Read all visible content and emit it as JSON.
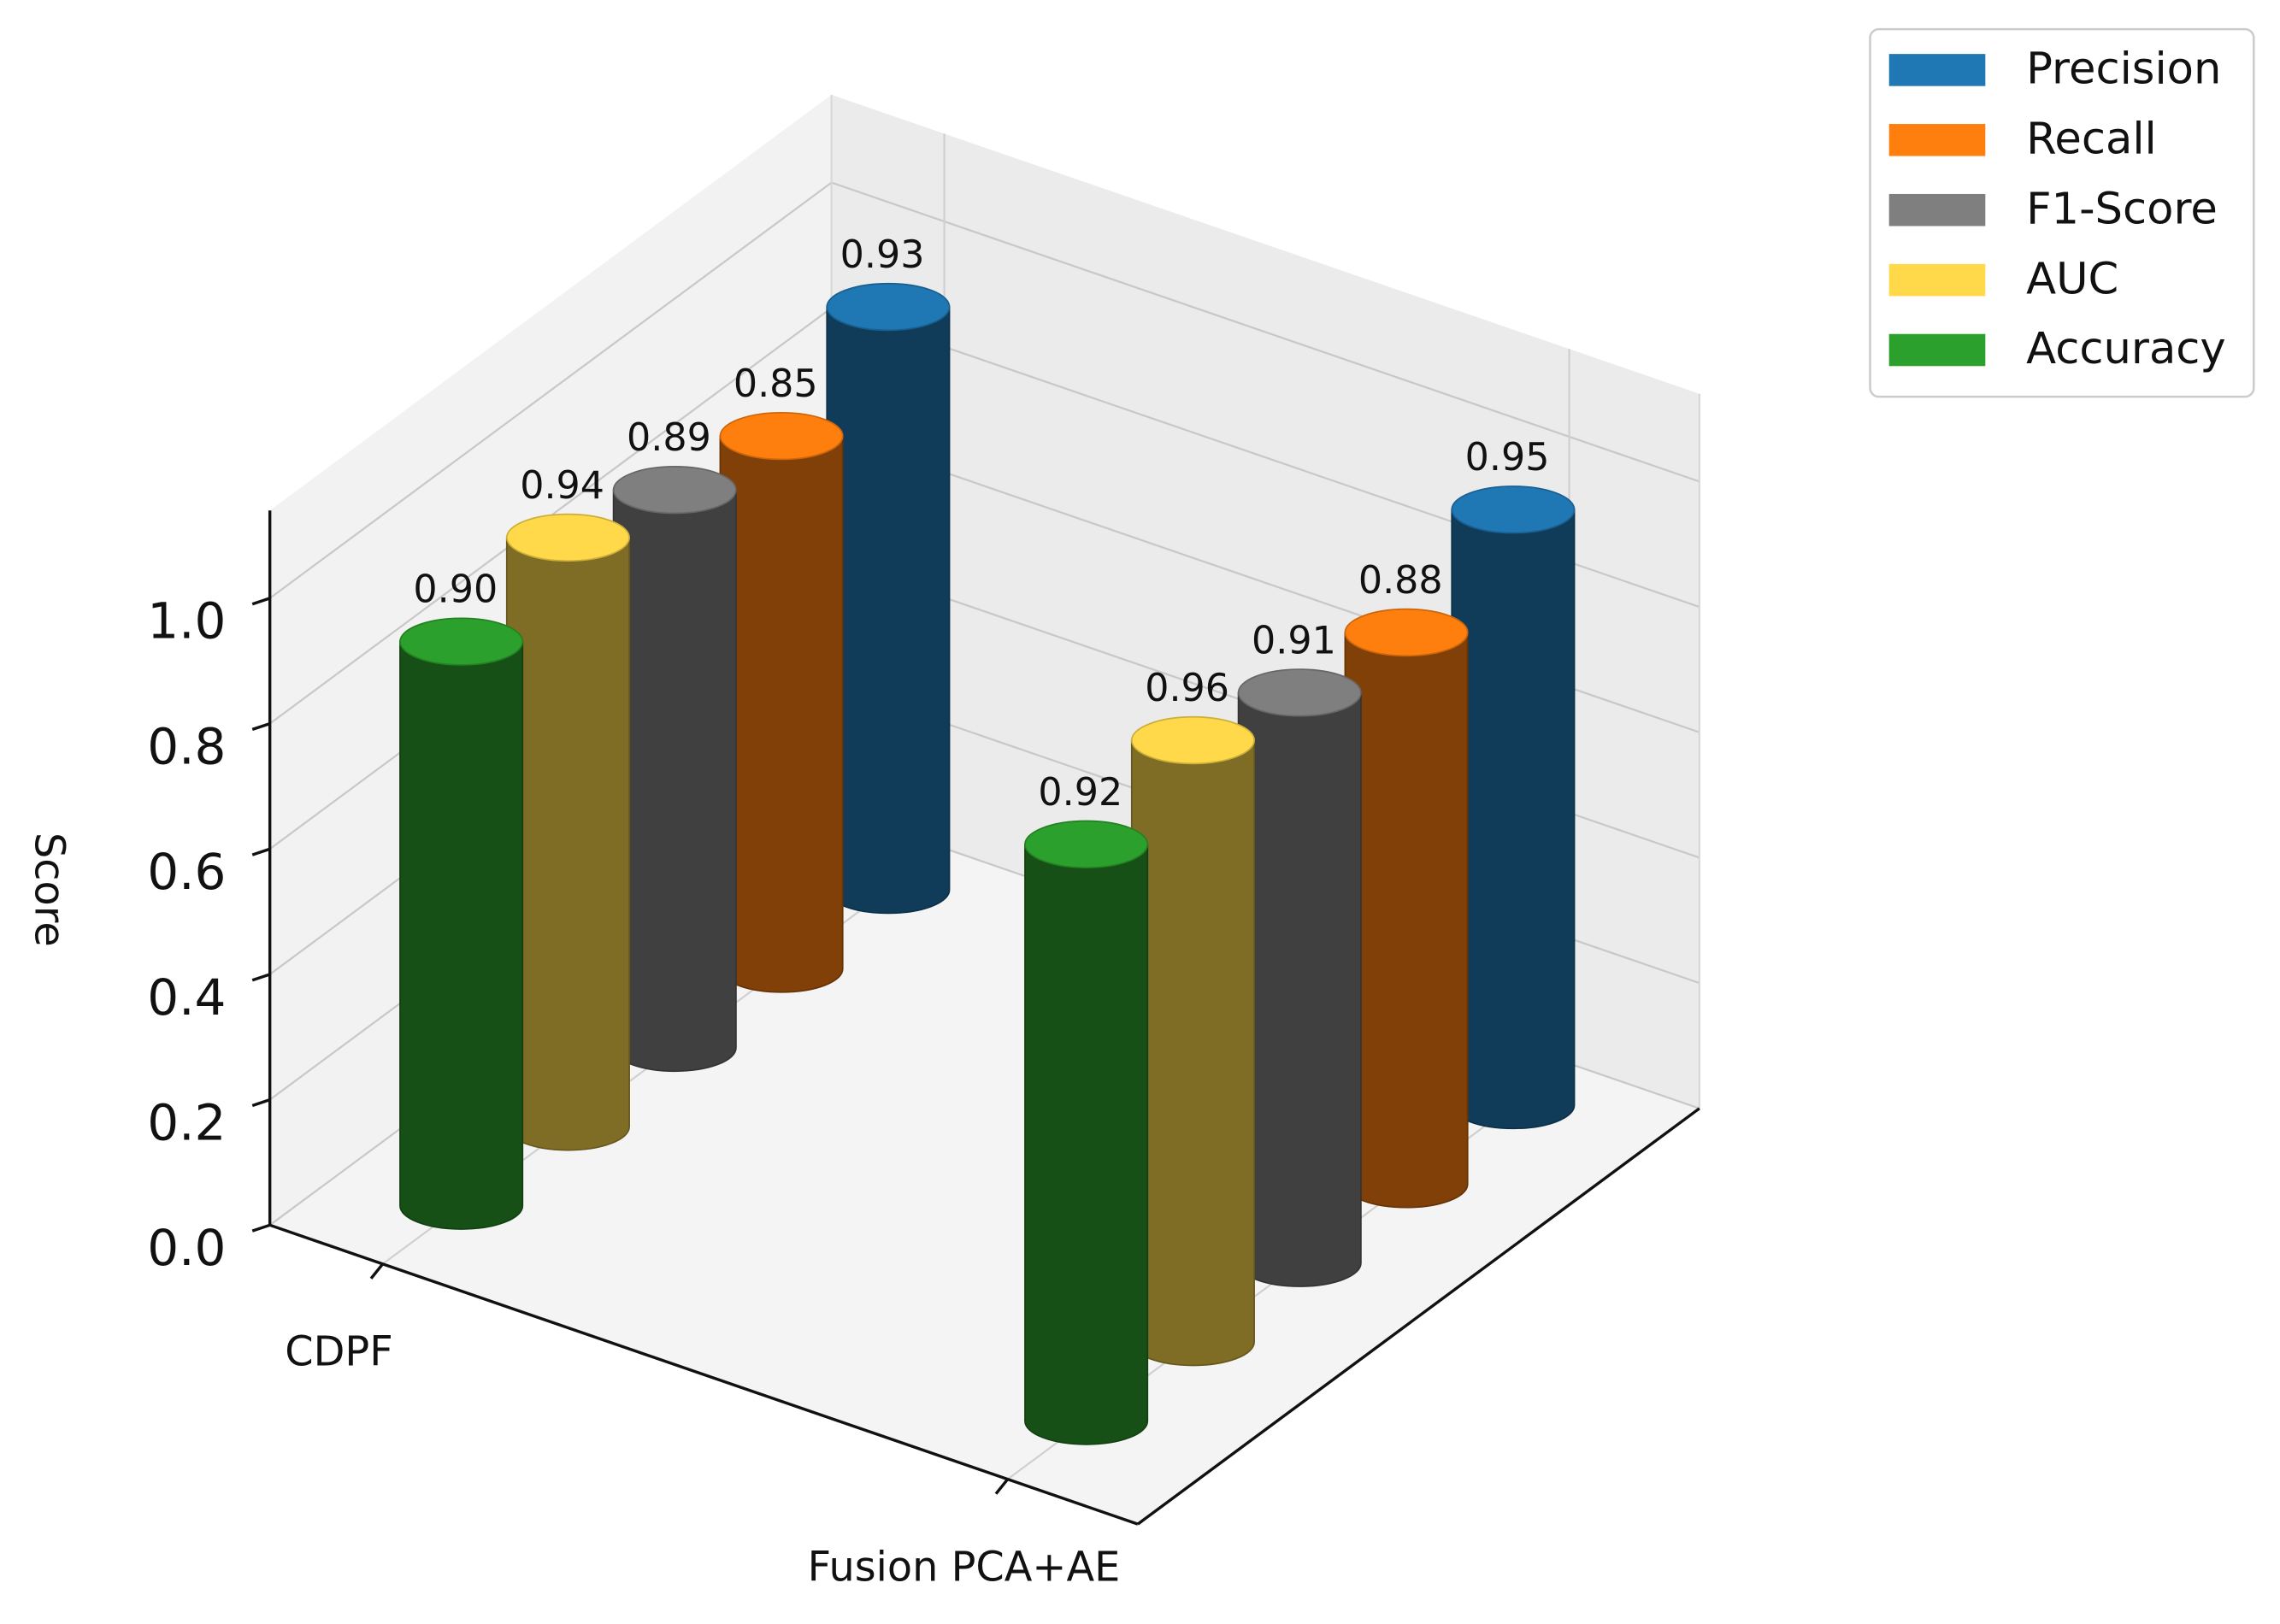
{
  "chart_data": {
    "type": "bar3d",
    "categories": [
      "CDPF",
      "Fusion PCA+AE"
    ],
    "series": [
      {
        "name": "Precision",
        "color": "#1f77b4",
        "values": [
          0.93,
          0.95
        ],
        "value_labels": [
          "0.93",
          "0.95"
        ]
      },
      {
        "name": "Recall",
        "color": "#ff7f0e",
        "values": [
          0.85,
          0.88
        ],
        "value_labels": [
          "0.85",
          "0.88"
        ]
      },
      {
        "name": "F1-Score",
        "color": "#7f7f7f",
        "values": [
          0.89,
          0.91
        ],
        "value_labels": [
          "0.89",
          "0.91"
        ]
      },
      {
        "name": "AUC",
        "color": "#ffd94a",
        "values": [
          0.94,
          0.96
        ],
        "value_labels": [
          "0.94",
          "0.96"
        ]
      },
      {
        "name": "Accuracy",
        "color": "#2ca02c",
        "values": [
          0.9,
          0.92
        ],
        "value_labels": [
          "0.90",
          "0.92"
        ]
      }
    ],
    "ylabel": "Score",
    "ylim": [
      0,
      1.14
    ],
    "yticks": [
      {
        "value": 0,
        "label": "0.0"
      },
      0.2,
      0.4,
      0.6,
      0.8,
      {
        "value": 1,
        "label": "1.0"
      }
    ],
    "grid": true,
    "legend": "upper right"
  }
}
